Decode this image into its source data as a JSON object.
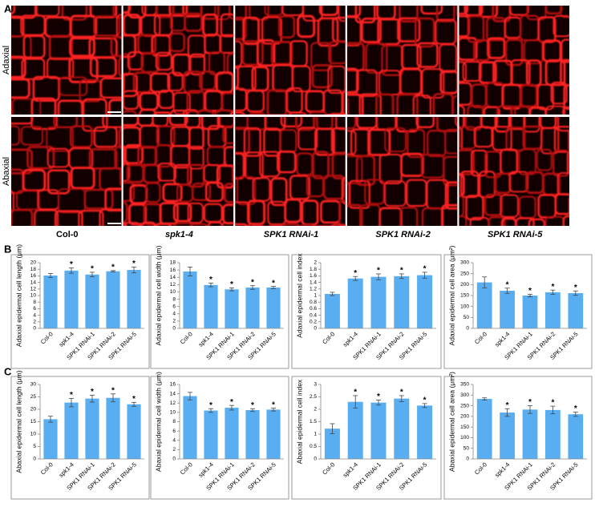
{
  "figure": {
    "panel_labels": [
      "A",
      "B",
      "C"
    ],
    "row_labels": [
      "Adaxial",
      "Abaxial"
    ],
    "genotypes": [
      "Col-0",
      "spk1-4",
      "SPK1 RNAi-1",
      "SPK1 RNAi-2",
      "SPK1 RNAi-5"
    ]
  },
  "chart_data": [
    {
      "type": "bar",
      "ylabel": "Adaxial epidermal cell length (μm)",
      "categories": [
        "Col-0",
        "spk1-4",
        "SPK1 RNAi-1",
        "SPK1 RNAi-2",
        "SPK1 RNAi-5"
      ],
      "values": [
        16.1,
        17.6,
        16.4,
        17.4,
        17.8
      ],
      "errors": [
        0.6,
        0.8,
        0.7,
        0.2,
        0.9
      ],
      "significance": [
        null,
        "*",
        "*",
        "*",
        "*"
      ],
      "ylim": [
        0,
        20
      ],
      "yticks": [
        0,
        2,
        4,
        6,
        8,
        10,
        12,
        14,
        16,
        18,
        20
      ],
      "color": "#58aef0"
    },
    {
      "type": "bar",
      "ylabel": "Adaxial epidermal cell width (μm)",
      "categories": [
        "Col-0",
        "spk1-4",
        "SPK1 RNAi-1",
        "SPK1 RNAi-2",
        "SPK1 RNAi-5"
      ],
      "values": [
        15.6,
        11.9,
        10.7,
        11.2,
        11.2
      ],
      "errors": [
        1.2,
        0.5,
        0.4,
        0.5,
        0.3
      ],
      "significance": [
        null,
        "*",
        "*",
        "*",
        "*"
      ],
      "ylim": [
        0,
        18
      ],
      "yticks": [
        0,
        2,
        4,
        6,
        8,
        10,
        12,
        14,
        16,
        18
      ],
      "color": "#58aef0"
    },
    {
      "type": "bar",
      "ylabel": "Adaxial epidermal cell index",
      "categories": [
        "Col-0",
        "spk1-4",
        "SPK1 RNAi-1",
        "SPK1 RNAi-2",
        "SPK1 RNAi-5"
      ],
      "values": [
        1.05,
        1.52,
        1.57,
        1.59,
        1.62
      ],
      "errors": [
        0.05,
        0.06,
        0.09,
        0.07,
        0.09
      ],
      "significance": [
        null,
        "*",
        "*",
        "*",
        "*"
      ],
      "ylim": [
        0,
        2
      ],
      "yticks": [
        0,
        0.2,
        0.4,
        0.6,
        0.8,
        1,
        1.2,
        1.4,
        1.6,
        1.8,
        2
      ],
      "color": "#58aef0"
    },
    {
      "type": "bar",
      "ylabel": "Adaxial epidermal cell area (μm²)",
      "categories": [
        "Col-0",
        "spk1-4",
        "SPK1 RNAi-1",
        "SPK1 RNAi-2",
        "SPK1 RNAi-5"
      ],
      "values": [
        210,
        172,
        150,
        165,
        161
      ],
      "errors": [
        25,
        12,
        6,
        10,
        10
      ],
      "significance": [
        null,
        "*",
        "*",
        "*",
        "*"
      ],
      "ylim": [
        0,
        300
      ],
      "yticks": [
        0,
        50,
        100,
        150,
        200,
        250,
        300
      ],
      "color": "#58aef0"
    },
    {
      "type": "bar",
      "ylabel": "Abaxial epidermal cell length (μm)",
      "categories": [
        "Col-0",
        "spk1-4",
        "SPK1 RNAi-1",
        "SPK1 RNAi-2",
        "SPK1 RNAi-5"
      ],
      "values": [
        16,
        22.7,
        24.3,
        24.6,
        22
      ],
      "errors": [
        1.2,
        1.7,
        1.4,
        1.6,
        0.8
      ],
      "significance": [
        null,
        "*",
        "*",
        "*",
        "*"
      ],
      "ylim": [
        0,
        30
      ],
      "yticks": [
        0,
        5,
        10,
        15,
        20,
        25,
        30
      ],
      "color": "#58aef0"
    },
    {
      "type": "bar",
      "ylabel": "Abaxial epidermal cell width (μm)",
      "categories": [
        "Col-0",
        "spk1-4",
        "SPK1 RNAi-1",
        "SPK1 RNAi-2",
        "SPK1 RNAi-5"
      ],
      "values": [
        13.5,
        10.4,
        11.0,
        10.5,
        10.6
      ],
      "errors": [
        0.8,
        0.4,
        0.5,
        0.3,
        0.3
      ],
      "significance": [
        null,
        "*",
        "*",
        "*",
        "*"
      ],
      "ylim": [
        0,
        16
      ],
      "yticks": [
        0,
        2,
        4,
        6,
        8,
        10,
        12,
        14,
        16
      ],
      "color": "#58aef0"
    },
    {
      "type": "bar",
      "ylabel": "Abaxial epidermal cell index",
      "categories": [
        "Col-0",
        "spk1-4",
        "SPK1 RNAi-1",
        "SPK1 RNAi-2",
        "SPK1 RNAi-5"
      ],
      "values": [
        1.22,
        2.3,
        2.27,
        2.43,
        2.15
      ],
      "errors": [
        0.2,
        0.25,
        0.1,
        0.12,
        0.08
      ],
      "significance": [
        null,
        "*",
        "*",
        "*",
        "*"
      ],
      "ylim": [
        0,
        3
      ],
      "yticks": [
        0,
        0.5,
        1,
        1.5,
        2,
        2.5,
        3
      ],
      "color": "#58aef0"
    },
    {
      "type": "bar",
      "ylabel": "Abaxial epidermal cell area (μm²)",
      "categories": [
        "Col-0",
        "spk1-4",
        "SPK1 RNAi-1",
        "SPK1 RNAi-2",
        "SPK1 RNAi-5"
      ],
      "values": [
        282,
        218,
        232,
        230,
        210
      ],
      "errors": [
        5,
        18,
        18,
        18,
        10
      ],
      "significance": [
        null,
        "*",
        "*",
        "*",
        "*"
      ],
      "ylim": [
        0,
        350
      ],
      "yticks": [
        0,
        50,
        100,
        150,
        200,
        250,
        300,
        350
      ],
      "color": "#58aef0"
    }
  ]
}
